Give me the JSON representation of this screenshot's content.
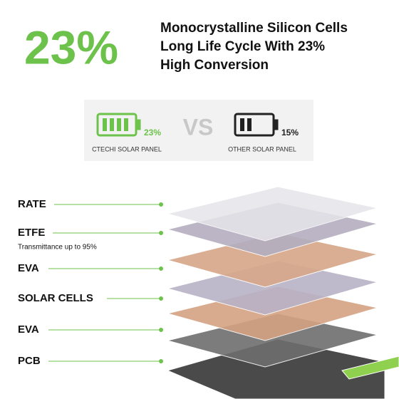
{
  "header": {
    "percent": "23%",
    "lines": [
      "Monocrystalline Silicon Cells",
      "Long Life Cycle With 23%",
      "High Conversion"
    ]
  },
  "comparison": {
    "left": {
      "value": "23%",
      "label": "CTECHI SOLAR PANEL"
    },
    "vs": "VS",
    "right": {
      "value": "15%",
      "label": "OTHER SOLAR PANEL"
    }
  },
  "layers": [
    {
      "label": "RATE"
    },
    {
      "label": "ETFE",
      "note": "Transmittance up to 95%"
    },
    {
      "label": "EVA"
    },
    {
      "label": "SOLAR CELLS"
    },
    {
      "label": "EVA"
    },
    {
      "label": "PCB"
    }
  ]
}
